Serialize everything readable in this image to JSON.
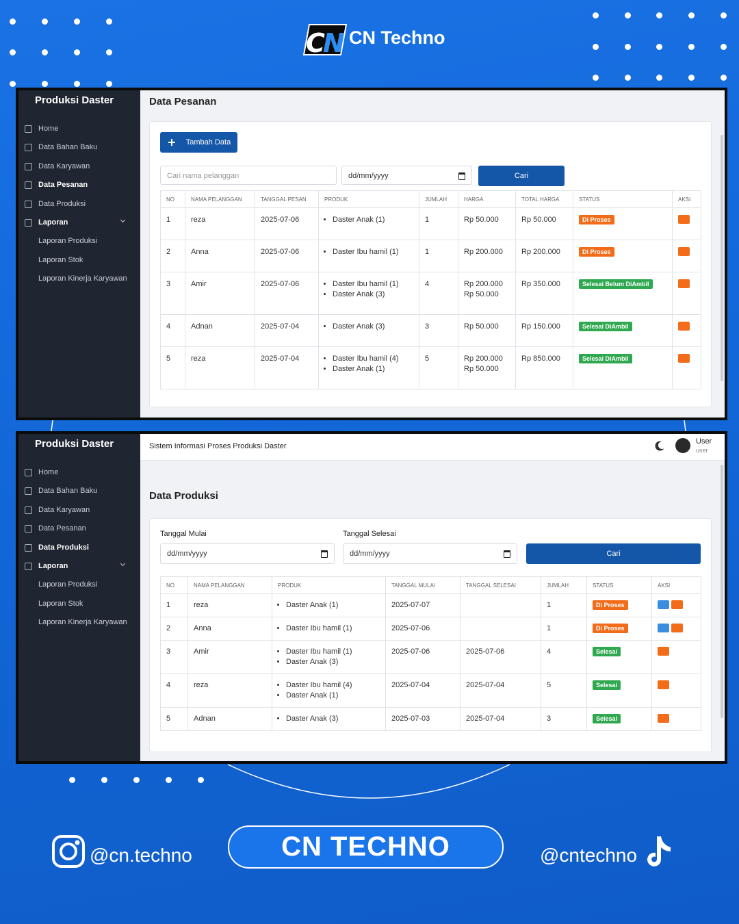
{
  "brand": "CN Techno",
  "screens": [
    {
      "sidebar": {
        "title": "Produksi Daster",
        "menu": [
          {
            "label": "Home"
          },
          {
            "label": "Data Bahan Baku"
          },
          {
            "label": "Data Karyawan"
          },
          {
            "label": "Data Pesanan",
            "active": true
          },
          {
            "label": "Data Produksi"
          },
          {
            "label": "Laporan",
            "active": true
          }
        ],
        "submenu": [
          "Laporan Produksi",
          "Laporan Stok",
          "Laporan Kinerja Karyawan"
        ]
      },
      "page_title": "Data Pesanan",
      "add_button": "Tambah Data",
      "search_placeholder": "Cari nama pelanggan",
      "date_placeholder": "dd/mm/yyyy",
      "search_button": "Cari",
      "table": {
        "headers": [
          "NO",
          "NAMA PELANGGAN",
          "TANGGAL PESAN",
          "PRODUK",
          "JUMLAH",
          "HARGA",
          "TOTAL HARGA",
          "STATUS",
          "AKSI"
        ],
        "rows": [
          [
            1,
            "reza",
            "2025-07-06",
            {
              "list": [
                "Daster Anak (1)"
              ]
            },
            1,
            [
              "Rp 50.000"
            ],
            "Rp 50.000",
            {
              "badge": "Di Proses",
              "color": "#f26c1a"
            },
            {
              "actions": [
                "#f26c1a"
              ]
            }
          ],
          [
            2,
            "Anna",
            "2025-07-06",
            {
              "list": [
                "Daster Ibu hamil (1)"
              ]
            },
            1,
            [
              "Rp 200.000"
            ],
            "Rp 200.000",
            {
              "badge": "Di Proses",
              "color": "#f26c1a"
            },
            {
              "actions": [
                "#f26c1a"
              ]
            }
          ],
          [
            3,
            "Amir",
            "2025-07-06",
            {
              "list": [
                "Daster Ibu hamil (1)",
                "Daster Anak (3)"
              ]
            },
            4,
            [
              "Rp 200.000",
              "Rp 50.000"
            ],
            "Rp 350.000",
            {
              "badge": "Selesai Belum DiAmbil",
              "color": "#2fa84f"
            },
            {
              "actions": [
                "#f26c1a"
              ]
            }
          ],
          [
            4,
            "Adnan",
            "2025-07-04",
            {
              "list": [
                "Daster Anak (3)"
              ]
            },
            3,
            [
              "Rp 50.000"
            ],
            "Rp 150.000",
            {
              "badge": "Selesai DiAmbil",
              "color": "#2fa84f"
            },
            {
              "actions": [
                "#f26c1a"
              ]
            }
          ],
          [
            5,
            "reza",
            "2025-07-04",
            {
              "list": [
                "Daster Ibu hamil (4)",
                "Daster Anak (1)"
              ]
            },
            5,
            [
              "Rp 200.000",
              "Rp 50.000"
            ],
            "Rp 850.000",
            {
              "badge": "Selesai DiAmbil",
              "color": "#2fa84f"
            },
            {
              "actions": [
                "#f26c1a"
              ]
            }
          ]
        ]
      }
    },
    {
      "sidebar": {
        "title": "Produksi Daster",
        "menu": [
          {
            "label": "Home"
          },
          {
            "label": "Data Bahan Baku"
          },
          {
            "label": "Data Karyawan"
          },
          {
            "label": "Data Pesanan"
          },
          {
            "label": "Data Produksi",
            "active": true
          },
          {
            "label": "Laporan",
            "active": true
          }
        ],
        "submenu": [
          "Laporan Produksi",
          "Laporan Stok",
          "Laporan Kinerja Karyawan"
        ]
      },
      "topbar": {
        "title": "Sistem Informasi Proses Produksi Daster",
        "user_name": "User",
        "user_role": "user"
      },
      "page_title": "Data Produksi",
      "start_label": "Tanggal Mulai",
      "end_label": "Tanggal Selesai",
      "date_placeholder": "dd/mm/yyyy",
      "search_button": "Cari",
      "table": {
        "headers": [
          "NO",
          "NAMA PELANGGAN",
          "PRODUK",
          "TANGGAL MULAI",
          "TANGGAL SELESAI",
          "JUMLAH",
          "STATUS",
          "AKSI"
        ],
        "rows": [
          [
            1,
            "reza",
            {
              "list": [
                "Daster Anak (1)"
              ]
            },
            "2025-07-07",
            null,
            1,
            {
              "badge": "Di Proses",
              "color": "#f26c1a"
            },
            {
              "actions": [
                "#3b8de0",
                "#f26c1a"
              ]
            }
          ],
          [
            2,
            "Anna",
            {
              "list": [
                "Daster Ibu hamil (1)"
              ]
            },
            "2025-07-06",
            null,
            1,
            {
              "badge": "Di Proses",
              "color": "#f26c1a"
            },
            {
              "actions": [
                "#3b8de0",
                "#f26c1a"
              ]
            }
          ],
          [
            3,
            "Amir",
            {
              "list": [
                "Daster Ibu hamil (1)",
                "Daster Anak (3)"
              ]
            },
            "2025-07-06",
            "2025-07-06",
            4,
            {
              "badge": "Selesai",
              "color": "#2fa84f"
            },
            {
              "actions": [
                "#f26c1a"
              ]
            }
          ],
          [
            4,
            "reza",
            {
              "list": [
                "Daster Ibu hamil (4)",
                "Daster Anak (1)"
              ]
            },
            "2025-07-04",
            "2025-07-04",
            5,
            {
              "badge": "Selesai",
              "color": "#2fa84f"
            },
            {
              "actions": [
                "#f26c1a"
              ]
            }
          ],
          [
            5,
            "Adnan",
            {
              "list": [
                "Daster Anak (3)"
              ]
            },
            "2025-07-03",
            "2025-07-04",
            3,
            {
              "badge": "Selesai",
              "color": "#2fa84f"
            },
            {
              "actions": [
                "#f26c1a"
              ]
            }
          ]
        ]
      }
    }
  ],
  "footer": {
    "instagram": "@cn.techno",
    "button": "CN TECHNO",
    "tiktok": "@cntechno"
  }
}
